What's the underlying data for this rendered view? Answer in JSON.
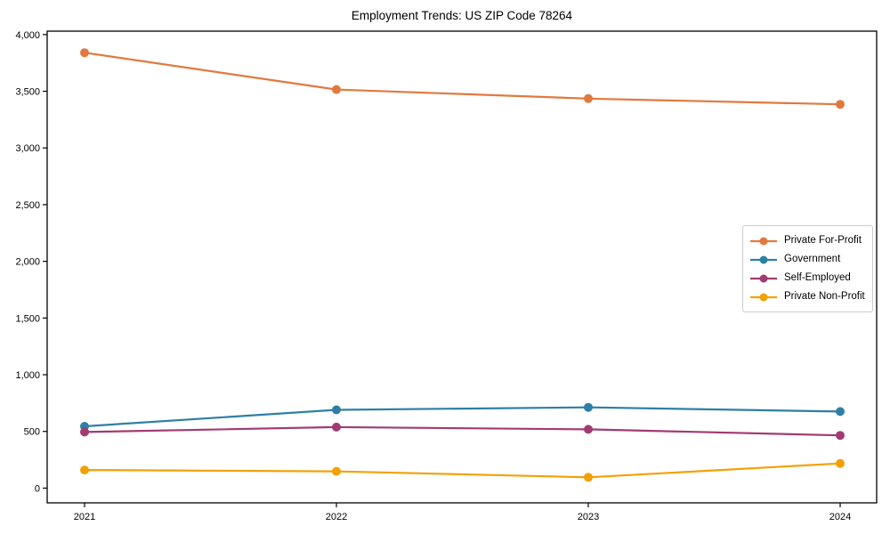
{
  "chart_data": {
    "type": "line",
    "title": "Employment Trends: US ZIP Code 78264",
    "xlabel": "",
    "ylabel": "",
    "x": [
      "2021",
      "2022",
      "2023",
      "2024"
    ],
    "series": [
      {
        "name": "Private For-Profit",
        "color": "#E1793E",
        "values": [
          3840,
          3515,
          3435,
          3385
        ]
      },
      {
        "name": "Government",
        "color": "#2E7FA5",
        "values": [
          545,
          690,
          712,
          675
        ]
      },
      {
        "name": "Self-Employed",
        "color": "#A23B72",
        "values": [
          495,
          538,
          518,
          465
        ]
      },
      {
        "name": "Private Non-Profit",
        "color": "#F2A104",
        "values": [
          160,
          148,
          95,
          218
        ]
      }
    ],
    "ylim": [
      -130,
      4030
    ],
    "y_ticks": [
      {
        "value": 0,
        "label": "0"
      },
      {
        "value": 500,
        "label": "500"
      },
      {
        "value": 1000,
        "label": "1,000"
      },
      {
        "value": 1500,
        "label": "1,500"
      },
      {
        "value": 2000,
        "label": "2,000"
      },
      {
        "value": 2500,
        "label": "2,500"
      },
      {
        "value": 3000,
        "label": "3,000"
      },
      {
        "value": 3500,
        "label": "3,500"
      },
      {
        "value": 4000,
        "label": "4,000"
      }
    ],
    "grid": false,
    "legend_position": "center-right",
    "axis_color": "#000000",
    "text_color": "#000000"
  }
}
